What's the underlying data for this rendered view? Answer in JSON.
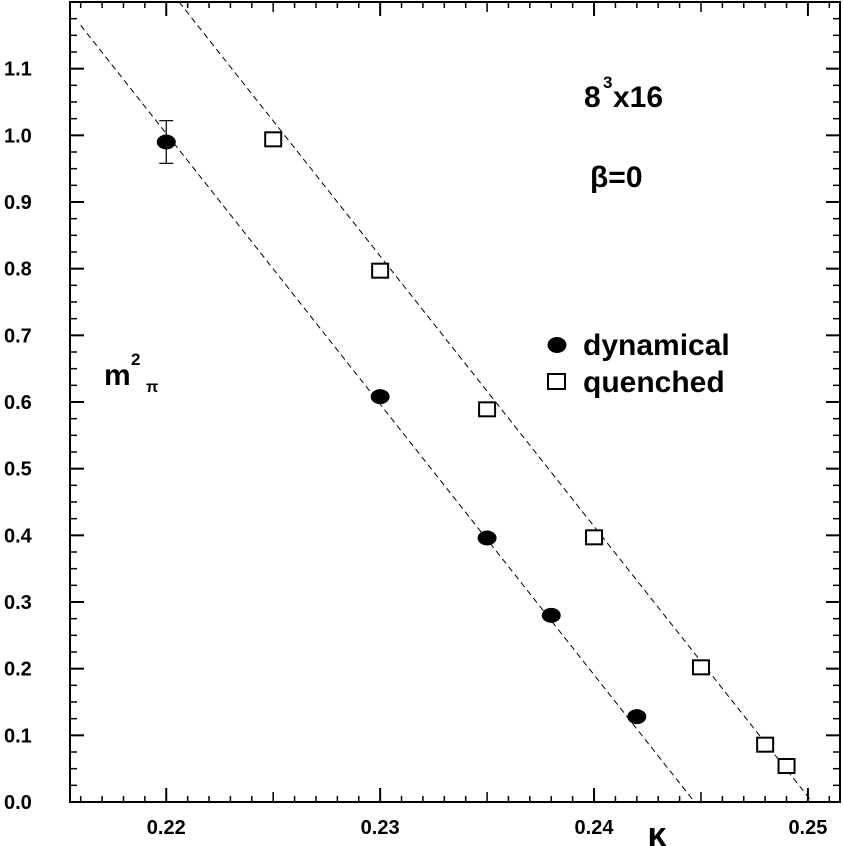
{
  "chart_data": {
    "type": "scatter",
    "xlabel": "κ",
    "ylabel": {
      "base": "m",
      "sup": "2",
      "sub": "π"
    },
    "xlim": [
      0.2155,
      0.2515
    ],
    "ylim": [
      0.0,
      1.2
    ],
    "xticks": [
      0.22,
      0.23,
      0.24,
      0.25
    ],
    "xtick_labels": [
      "0.22",
      "0.23",
      "0.24",
      "0.25"
    ],
    "yticks": [
      0.0,
      0.1,
      0.2,
      0.3,
      0.4,
      0.5,
      0.6,
      0.7,
      0.8,
      0.9,
      1.0,
      1.1
    ],
    "ytick_labels": [
      "0.0",
      "0.1",
      "0.2",
      "0.3",
      "0.4",
      "0.5",
      "0.6",
      "0.7",
      "0.8",
      "0.9",
      "1.0",
      "1.1"
    ],
    "annotations": [
      {
        "base": "8",
        "sup": "3",
        "rest": "x16"
      },
      {
        "text": "β=0"
      }
    ],
    "legend_position": "right",
    "series": [
      {
        "name": "dynamical",
        "marker": "filled-ellipse",
        "points": [
          {
            "x": 0.22,
            "y": 0.99,
            "err": 0.032
          },
          {
            "x": 0.23,
            "y": 0.608
          },
          {
            "x": 0.235,
            "y": 0.396
          },
          {
            "x": 0.238,
            "y": 0.28
          },
          {
            "x": 0.242,
            "y": 0.128
          }
        ],
        "fit": {
          "x": [
            0.216,
            0.2447
          ],
          "y": [
            1.165,
            0.0
          ]
        }
      },
      {
        "name": "quenched",
        "marker": "open-square",
        "points": [
          {
            "x": 0.225,
            "y": 0.994
          },
          {
            "x": 0.23,
            "y": 0.797
          },
          {
            "x": 0.235,
            "y": 0.589
          },
          {
            "x": 0.24,
            "y": 0.397
          },
          {
            "x": 0.245,
            "y": 0.202
          },
          {
            "x": 0.248,
            "y": 0.086
          },
          {
            "x": 0.249,
            "y": 0.054
          }
        ],
        "fit": {
          "x": [
            0.2206,
            0.2502
          ],
          "y": [
            1.2,
            0.0
          ]
        }
      }
    ]
  }
}
